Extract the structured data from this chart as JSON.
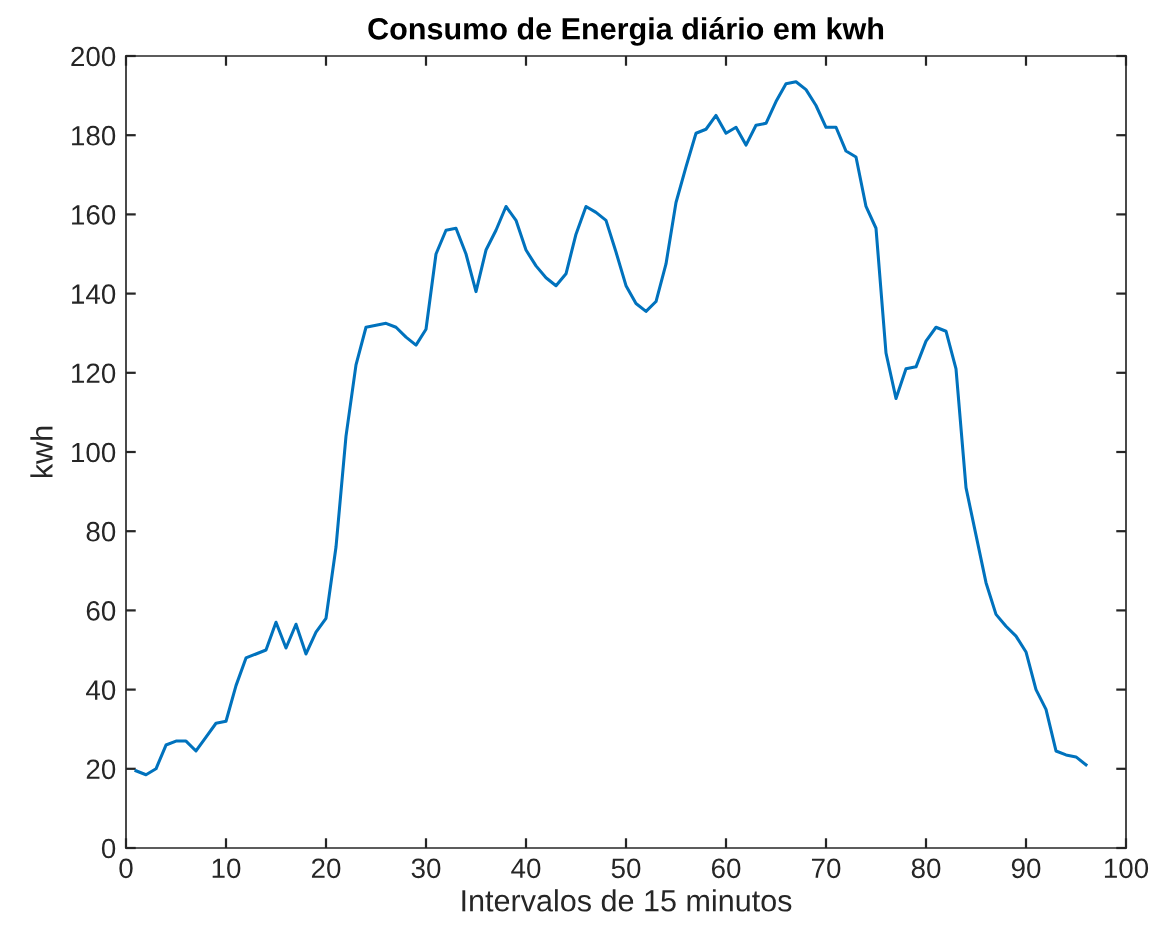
{
  "chart_data": {
    "type": "line",
    "title": "Consumo de Energia diário em kwh",
    "xlabel": "Intervalos de 15 minutos",
    "ylabel": "kwh",
    "x": [
      1,
      2,
      3,
      4,
      5,
      6,
      7,
      8,
      9,
      10,
      11,
      12,
      13,
      14,
      15,
      16,
      17,
      18,
      19,
      20,
      21,
      22,
      23,
      24,
      25,
      26,
      27,
      28,
      29,
      30,
      31,
      32,
      33,
      34,
      35,
      36,
      37,
      38,
      39,
      40,
      41,
      42,
      43,
      44,
      45,
      46,
      47,
      48,
      49,
      50,
      51,
      52,
      53,
      54,
      55,
      56,
      57,
      58,
      59,
      60,
      61,
      62,
      63,
      64,
      65,
      66,
      67,
      68,
      69,
      70,
      71,
      72,
      73,
      74,
      75,
      76,
      77,
      78,
      79,
      80,
      81,
      82,
      83,
      84,
      85,
      86,
      87,
      88,
      89,
      90,
      91,
      92,
      93,
      94,
      95,
      96
    ],
    "series": [
      {
        "color": "#0072bd",
        "values": [
          19.5,
          18.5,
          20,
          26,
          27,
          27,
          24.5,
          28,
          31.5,
          32,
          41,
          48,
          49,
          50,
          57,
          50.5,
          56.5,
          49,
          54.5,
          58,
          76,
          104,
          122,
          131.5,
          132,
          132.5,
          131.5,
          129,
          127,
          131,
          150,
          156,
          156.5,
          150,
          140.5,
          151,
          156,
          162,
          158.5,
          151,
          147,
          144,
          142,
          145,
          155,
          162,
          160.5,
          158.5,
          150.5,
          142,
          137.5,
          135.5,
          138,
          147.5,
          163,
          172,
          180.5,
          181.5,
          185,
          180.5,
          182,
          177.5,
          182.5,
          183,
          188.5,
          193,
          193.5,
          191.5,
          187.5,
          182,
          182,
          176,
          174.5,
          162,
          156.5,
          125,
          113.5,
          121,
          121.5,
          128,
          131.5,
          130.5,
          121,
          91,
          79,
          67,
          59,
          56,
          53.5,
          49.5,
          40,
          35,
          24.5,
          23.5,
          23,
          21
        ]
      }
    ],
    "xlim": [
      0,
      100
    ],
    "xticks": [
      0,
      10,
      20,
      30,
      40,
      50,
      60,
      70,
      80,
      90,
      100
    ],
    "ylim": [
      0,
      200
    ],
    "yticks": [
      0,
      20,
      40,
      60,
      80,
      100,
      120,
      140,
      160,
      180,
      200
    ],
    "grid": false,
    "legend": false
  }
}
